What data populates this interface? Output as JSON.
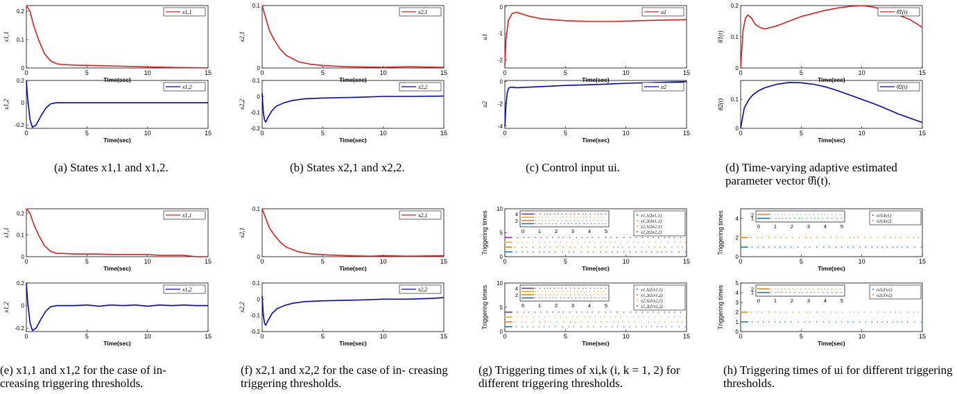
{
  "xticks": [
    "0",
    "5",
    "10",
    "15"
  ],
  "xticks_inset": [
    "0",
    "1",
    "2",
    "3",
    "4",
    "5"
  ],
  "xlabel": "Time(sec)",
  "colors": {
    "red": "#e41a1c",
    "blue": "#0000cc",
    "c_blue": "#1f77b4",
    "c_orange": "#ff7f0e",
    "c_yellow": "#edb120",
    "c_purple": "#7e2f8e"
  },
  "captions": [
    "(a) States x1,1 and x1,2.",
    "(b) States x2,1 and x2,2.",
    "(c) Control input ui.",
    "(d) Time-varying adaptive estimated parameter vector θ̂i(t).",
    "(e) x1,1 and x1,2 for the case of in- creasing triggering thresholds.",
    "(f) x2,1 and x2,2 for the case of in- creasing triggering thresholds.",
    "(g) Triggering times of xi,k (i, k = 1, 2) for different triggering thresholds.",
    "(h) Triggering times of ui for different triggering thresholds."
  ],
  "chart_data": [
    {
      "id": "a1",
      "type": "line",
      "ylabel": "x1,1",
      "ylim": [
        0,
        0.22
      ],
      "yticks": [
        "0",
        "0.1",
        "0.2"
      ],
      "yvals": [
        0,
        0.1,
        0.2
      ],
      "legend": [
        "x1,1"
      ],
      "series": [
        {
          "name": "x1,1",
          "color": "red",
          "x": [
            0,
            0.3,
            0.6,
            1,
            1.5,
            2,
            2.5,
            3,
            4,
            6,
            8,
            10,
            12,
            14,
            15
          ],
          "y": [
            0.22,
            0.2,
            0.15,
            0.1,
            0.05,
            0.025,
            0.015,
            0.012,
            0.01,
            0.008,
            0.006,
            0.004,
            0.002,
            0.001,
            0.0
          ]
        }
      ]
    },
    {
      "id": "a2",
      "type": "line",
      "ylabel": "x1,2",
      "ylim": [
        -0.23,
        0.2
      ],
      "yticks": [
        "-0.2",
        "0",
        "0.2"
      ],
      "yvals": [
        -0.2,
        0,
        0.2
      ],
      "legend": [
        "x1,2"
      ],
      "series": [
        {
          "name": "x1,2",
          "color": "blue",
          "x": [
            0,
            0.1,
            0.3,
            0.5,
            0.8,
            1.2,
            1.6,
            2,
            2.5,
            3,
            5,
            10,
            15
          ],
          "y": [
            0.2,
            0.05,
            -0.15,
            -0.22,
            -0.2,
            -0.12,
            -0.05,
            -0.01,
            0,
            0,
            0,
            0,
            0
          ]
        }
      ]
    },
    {
      "id": "b1",
      "type": "line",
      "ylabel": "x2,1",
      "ylim": [
        0,
        0.1
      ],
      "yticks": [
        "0",
        "0.1"
      ],
      "yvals": [
        0,
        0.1
      ],
      "legend": [
        "x2,1"
      ],
      "series": [
        {
          "name": "x2,1",
          "color": "red",
          "x": [
            0,
            0.3,
            0.6,
            1,
            1.5,
            2,
            3,
            4,
            5,
            7,
            10,
            12,
            15
          ],
          "y": [
            0.1,
            0.08,
            0.06,
            0.045,
            0.03,
            0.02,
            0.01,
            0.006,
            0.004,
            0.002,
            0.001,
            0.002,
            0.001
          ]
        }
      ]
    },
    {
      "id": "b2",
      "type": "line",
      "ylabel": "x2,2",
      "ylim": [
        -0.2,
        0.1
      ],
      "yticks": [
        "-0.2",
        "-0.1",
        "0",
        "0.1"
      ],
      "yvals": [
        -0.2,
        -0.1,
        0,
        0.1
      ],
      "legend": [
        "x2,2"
      ],
      "series": [
        {
          "name": "x2,2",
          "color": "blue",
          "x": [
            0,
            0.1,
            0.2,
            0.3,
            0.5,
            0.8,
            1.2,
            1.8,
            2.5,
            3.5,
            5,
            8,
            10,
            12,
            15
          ],
          "y": [
            0.02,
            -0.1,
            -0.15,
            -0.16,
            -0.13,
            -0.09,
            -0.06,
            -0.04,
            -0.025,
            -0.015,
            -0.01,
            -0.005,
            0,
            0,
            0.002
          ]
        }
      ]
    },
    {
      "id": "c1",
      "type": "line",
      "ylabel": "u1",
      "ylim": [
        -2.3,
        0.05
      ],
      "yticks": [
        "-2",
        "-1",
        "0"
      ],
      "yvals": [
        -2,
        -1,
        0
      ],
      "legend": [
        "u1"
      ],
      "series": [
        {
          "name": "u1",
          "color": "red",
          "x": [
            0,
            0.1,
            0.3,
            0.6,
            1,
            1.5,
            2,
            3,
            5,
            7,
            9,
            11,
            13,
            15
          ],
          "y": [
            -2.2,
            -1.2,
            -0.5,
            -0.25,
            -0.2,
            -0.28,
            -0.35,
            -0.45,
            -0.52,
            -0.55,
            -0.55,
            -0.52,
            -0.5,
            -0.48
          ]
        }
      ]
    },
    {
      "id": "c2",
      "type": "line",
      "ylabel": "u2",
      "ylim": [
        -4.2,
        0.1
      ],
      "yticks": [
        "-4",
        "-2",
        "0"
      ],
      "yvals": [
        -4,
        -2,
        0
      ],
      "legend": [
        "u2"
      ],
      "series": [
        {
          "name": "u2",
          "color": "blue",
          "x": [
            0,
            0.1,
            0.2,
            0.3,
            0.5,
            1,
            3,
            5,
            8,
            10,
            12,
            15
          ],
          "y": [
            -4.0,
            -2,
            -1,
            -0.6,
            -0.5,
            -0.55,
            -0.45,
            -0.35,
            -0.25,
            -0.15,
            -0.1,
            0.0
          ]
        }
      ]
    },
    {
      "id": "d1",
      "type": "line",
      "ylabel": "θ̂1(t)",
      "ylim": [
        0,
        0.2
      ],
      "yticks": [
        "0",
        "0.1",
        "0.2"
      ],
      "yvals": [
        0,
        0.1,
        0.2
      ],
      "legend": [
        "θ̂1(t)"
      ],
      "series": [
        {
          "name": "θ̂1(t)",
          "color": "red",
          "x": [
            0,
            0.2,
            0.4,
            0.6,
            0.9,
            1.2,
            1.6,
            2,
            3,
            4,
            5,
            6,
            7,
            8,
            9,
            10,
            11,
            12,
            13,
            14,
            15
          ],
          "y": [
            0,
            0.12,
            0.16,
            0.17,
            0.16,
            0.14,
            0.13,
            0.125,
            0.135,
            0.15,
            0.165,
            0.175,
            0.185,
            0.192,
            0.197,
            0.2,
            0.195,
            0.185,
            0.17,
            0.155,
            0.13
          ]
        }
      ]
    },
    {
      "id": "d2",
      "type": "line",
      "ylabel": "θ̂2(t)",
      "ylim": [
        0,
        0.165
      ],
      "yticks": [
        "0",
        "0.1"
      ],
      "yvals": [
        0,
        0.1
      ],
      "legend": [
        "θ̂2(t)"
      ],
      "series": [
        {
          "name": "θ̂2(t)",
          "color": "blue",
          "x": [
            0,
            0.3,
            0.7,
            1,
            1.5,
            2,
            3,
            4,
            5,
            6,
            7,
            8,
            9,
            10,
            11,
            12,
            13,
            14,
            15
          ],
          "y": [
            0,
            0.07,
            0.1,
            0.115,
            0.13,
            0.14,
            0.152,
            0.158,
            0.157,
            0.152,
            0.143,
            0.13,
            0.115,
            0.1,
            0.085,
            0.068,
            0.05,
            0.035,
            0.02
          ]
        }
      ]
    },
    {
      "id": "e1",
      "type": "line",
      "ylabel": "x1,1",
      "ylim": [
        0,
        0.22
      ],
      "yticks": [
        "0",
        "0.1",
        "0.2"
      ],
      "yvals": [
        0,
        0.1,
        0.2
      ],
      "legend": [
        "x1,1"
      ],
      "series": [
        {
          "name": "x1,1",
          "color": "red",
          "x": [
            0,
            0.3,
            0.6,
            1,
            1.5,
            2,
            2.5,
            3,
            4,
            5,
            6,
            7,
            8,
            9,
            10,
            11,
            12,
            13,
            14,
            15
          ],
          "y": [
            0.22,
            0.2,
            0.15,
            0.1,
            0.05,
            0.025,
            0.015,
            0.015,
            0.012,
            0.012,
            0.012,
            0.01,
            0.01,
            0.01,
            0.01,
            0.006,
            0.006,
            0.006,
            0.0,
            0.0
          ]
        }
      ]
    },
    {
      "id": "e2",
      "type": "line",
      "ylabel": "x1,2",
      "ylim": [
        -0.23,
        0.2
      ],
      "yticks": [
        "-0.2",
        "0",
        "0.2"
      ],
      "yvals": [
        -0.2,
        0,
        0.2
      ],
      "legend": [
        "x1,2"
      ],
      "series": [
        {
          "name": "x1,2",
          "color": "blue",
          "x": [
            0,
            0.1,
            0.3,
            0.5,
            0.8,
            1.2,
            1.6,
            2,
            2.5,
            3,
            4,
            5,
            6,
            7,
            8,
            9,
            10,
            11,
            12,
            13,
            14,
            15
          ],
          "y": [
            0.2,
            0.05,
            -0.15,
            -0.22,
            -0.2,
            -0.12,
            -0.05,
            -0.01,
            0,
            0,
            0,
            0.005,
            -0.005,
            0.005,
            0,
            0.005,
            -0.005,
            0.005,
            0,
            0.005,
            0,
            0
          ]
        }
      ]
    },
    {
      "id": "f1",
      "type": "line",
      "ylabel": "x2,1",
      "ylim": [
        0,
        0.1
      ],
      "yticks": [
        "0",
        "0.1"
      ],
      "yvals": [
        0,
        0.1
      ],
      "legend": [
        "x2,1"
      ],
      "series": [
        {
          "name": "x2,1",
          "color": "red",
          "x": [
            0,
            0.3,
            0.6,
            1,
            1.5,
            2,
            3,
            4,
            5,
            7,
            9,
            10,
            12,
            15
          ],
          "y": [
            0.1,
            0.08,
            0.06,
            0.045,
            0.03,
            0.02,
            0.01,
            0.006,
            0.004,
            0.002,
            0.001,
            0.002,
            0.001,
            0.002
          ]
        }
      ]
    },
    {
      "id": "f2",
      "type": "line",
      "ylabel": "x2,2",
      "ylim": [
        -0.2,
        0.1
      ],
      "yticks": [
        "-0.2",
        "-0.1",
        "0",
        "0.1"
      ],
      "yvals": [
        -0.2,
        -0.1,
        0,
        0.1
      ],
      "legend": [
        "x2,2"
      ],
      "series": [
        {
          "name": "x2,2",
          "color": "blue",
          "x": [
            0,
            0.1,
            0.2,
            0.3,
            0.5,
            0.8,
            1.2,
            1.8,
            2.5,
            3.5,
            5,
            8,
            10,
            12,
            14,
            15
          ],
          "y": [
            0.02,
            -0.1,
            -0.15,
            -0.16,
            -0.13,
            -0.09,
            -0.06,
            -0.04,
            -0.025,
            -0.015,
            -0.01,
            -0.005,
            0,
            0,
            0.005,
            0.01
          ]
        }
      ]
    },
    {
      "id": "g1",
      "type": "scatter",
      "ylabel": "Triggering times",
      "ylim": [
        0,
        10
      ],
      "yticks": [
        "0",
        "5",
        "10"
      ],
      "yvals": [
        0,
        5,
        10
      ],
      "legend": [
        "x1,1(Δx1,1)",
        "x1,2(Δx1,2)",
        "x2,1(Δx2,1)",
        "x2,2(Δx2,2)"
      ],
      "rows": [
        {
          "y": 1,
          "color": "c_blue"
        },
        {
          "y": 2,
          "color": "c_orange"
        },
        {
          "y": 3,
          "color": "c_yellow"
        },
        {
          "y": 4,
          "color": "c_purple"
        }
      ],
      "inset_yticks": [
        "2",
        "4"
      ]
    },
    {
      "id": "g2",
      "type": "scatter",
      "ylabel": "Triggering times",
      "ylim": [
        0,
        10
      ],
      "yticks": [
        "0",
        "5",
        "10"
      ],
      "yvals": [
        0,
        5,
        10
      ],
      "legend": [
        "x1,1(Δ′x1,1)",
        "x1,2(Δ′x1,2)",
        "x2,1(Δ′x2,1)",
        "x2,2(Δ′x2,2)"
      ],
      "rows": [
        {
          "y": 1,
          "color": "c_blue"
        },
        {
          "y": 2,
          "color": "c_orange"
        },
        {
          "y": 3,
          "color": "c_yellow"
        },
        {
          "y": 4,
          "color": "c_purple"
        }
      ],
      "inset_yticks": [
        "2",
        "4"
      ]
    },
    {
      "id": "h1",
      "type": "scatter",
      "ylabel": "Triggering times",
      "ylim": [
        0,
        5
      ],
      "yticks": [
        "0",
        "2",
        "4"
      ],
      "yvals": [
        0,
        2,
        4
      ],
      "legend": [
        "u1(Δu1)",
        "u2(Δu2)"
      ],
      "rows": [
        {
          "y": 1,
          "color": "c_blue"
        },
        {
          "y": 2,
          "color": "c_orange"
        }
      ],
      "inset_yticks": [
        "1",
        "2"
      ]
    },
    {
      "id": "h2",
      "type": "scatter",
      "ylabel": "Triggering times",
      "ylim": [
        0,
        5
      ],
      "yticks": [
        "0",
        "1",
        "2",
        "3",
        "4",
        "5"
      ],
      "yvals": [
        0,
        1,
        2,
        3,
        4,
        5
      ],
      "legend": [
        "u1(Δ′u1)",
        "u2(Δ′u2)"
      ],
      "rows": [
        {
          "y": 1,
          "color": "c_blue"
        },
        {
          "y": 2,
          "color": "c_orange"
        }
      ],
      "inset_yticks": [
        "1",
        "2"
      ]
    }
  ]
}
